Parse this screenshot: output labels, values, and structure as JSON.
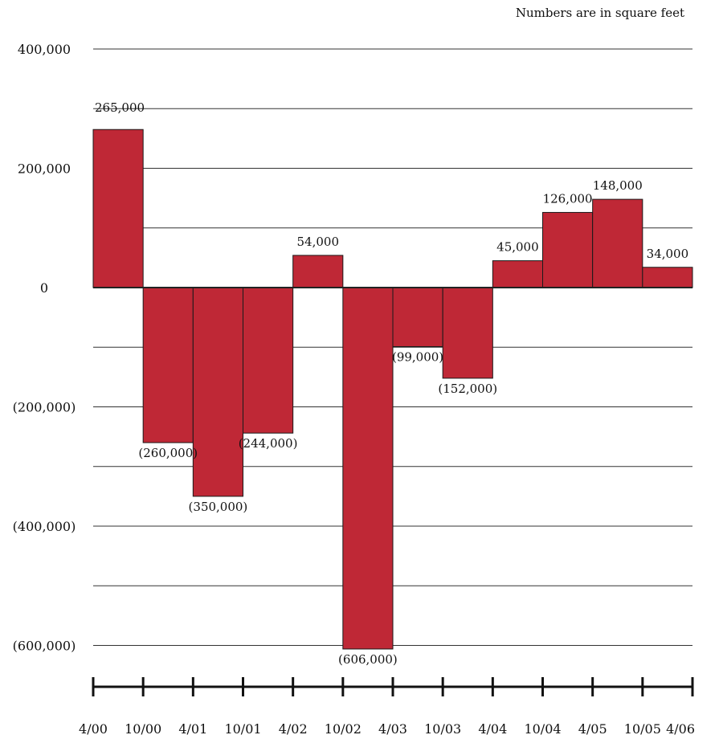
{
  "chart_data": {
    "type": "bar",
    "note": "Numbers are in square feet",
    "x_tick_labels": [
      "4/00",
      "10/00",
      "4/01",
      "10/01",
      "4/02",
      "10/02",
      "4/03",
      "10/03",
      "4/04",
      "10/04",
      "4/05",
      "10/05",
      "4/06"
    ],
    "y_tick_values": [
      400000,
      200000,
      0,
      -200000,
      -400000,
      -600000
    ],
    "y_tick_labels": [
      "400,000",
      "200,000",
      "0",
      "(200,000)",
      "(400,000)",
      "(600,000)"
    ],
    "gridline_step": 100000,
    "ylim": [
      -640000,
      400000
    ],
    "values": [
      265000,
      -260000,
      -350000,
      -244000,
      54000,
      -606000,
      -99000,
      -152000,
      45000,
      126000,
      148000,
      34000
    ],
    "value_labels": [
      "265,000",
      "(260,000)",
      "(350,000)",
      "(244,000)",
      "54,000",
      "(606,000)",
      "(99,000)",
      "(152,000)",
      "45,000",
      "126,000",
      "148,000",
      "34,000"
    ],
    "bar_color": "#BF2836",
    "grid": true
  }
}
